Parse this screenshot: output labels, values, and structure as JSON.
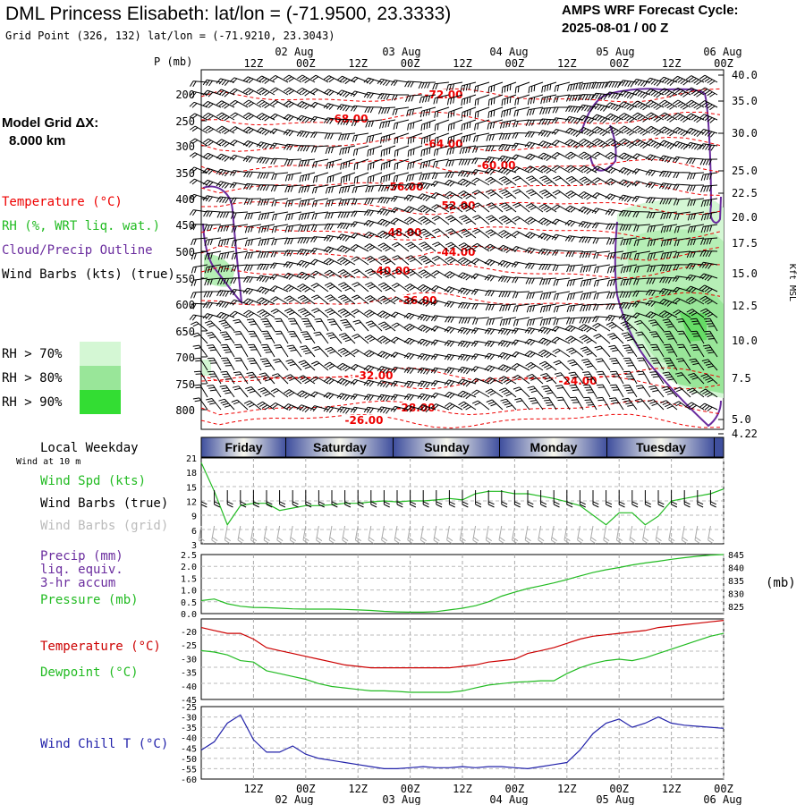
{
  "header": {
    "title": "DML Princess Elisabeth:  lat/lon = (-71.9500, 23.3333)",
    "subtitle": "Grid Point (326, 132) lat/lon = (-71.9210, 23.3043)",
    "cycle_line1": "AMPS WRF Forecast Cycle:",
    "cycle_line2": "2025-08-01 / 00  Z"
  },
  "legend": {
    "model_grid_label": "Model Grid ΔX:",
    "model_grid_value": "8.000 km",
    "temperature": "Temperature (°C)",
    "rh": "RH (%, WRT liq. wat.)",
    "cloud": "Cloud/Precip Outline",
    "wind": "Wind Barbs (kts) (true)",
    "rh70": "RH > 70%",
    "rh80": "RH > 80%",
    "rh90": "RH > 90%",
    "colors": {
      "rh70": "#d4f7d4",
      "rh80": "#99e699",
      "rh90": "#33dd33",
      "temp": "#ee0000",
      "cloud": "#6a2c9e"
    }
  },
  "panels": {
    "p_label": "P (mb)",
    "kft_label": "Kft MSL",
    "local_weekday": "Local Weekday",
    "wind_at": "Wind at 10 m",
    "wind_spd": "Wind Spd (kts)",
    "wind_barbs_true": "Wind Barbs (true)",
    "wind_barbs_grid": "Wind Barbs (grid)",
    "precip_l1": "Precip (mm)",
    "precip_l2": "liq. equiv.",
    "precip_l3": "3-hr accum",
    "pressure": "Pressure (mb)",
    "mb": "(mb)",
    "temperature": "Temperature (°C)",
    "dewpoint": "Dewpoint (°C)",
    "windchill": "Wind Chill T (°C)"
  },
  "time_axis": {
    "labels": [
      "12Z",
      "00Z",
      "12Z",
      "00Z",
      "12Z",
      "00Z",
      "12Z",
      "00Z",
      "12Z",
      "00Z"
    ],
    "dates": [
      "02 Aug",
      "03 Aug",
      "04 Aug",
      "05 Aug",
      "06 Aug"
    ],
    "days": [
      "Friday",
      "Saturday",
      "Sunday",
      "Monday",
      "Tuesday"
    ]
  },
  "chart_data": [
    {
      "type": "line",
      "name": "Vertical cross-section",
      "pressure_ticks": [
        "200",
        "250",
        "300",
        "350",
        "400",
        "450",
        "500",
        "550",
        "600",
        "650",
        "700",
        "750",
        "800"
      ],
      "height_ticks": [
        "40.0",
        "35.0",
        "30.0",
        "25.0",
        "22.5",
        "20.0",
        "17.5",
        "15.0",
        "12.5",
        "10.0",
        "7.5",
        "5.0",
        "4.22"
      ],
      "isotherm_labels": [
        "-72.00",
        "-68.00",
        "-64.00",
        "-60.00",
        "-56.00",
        "-52.00",
        "-48.00",
        "-44.00",
        "-40.00",
        "-36.00",
        "-32.00",
        "-28.00",
        "-26.00",
        "-24.00"
      ]
    },
    {
      "type": "line",
      "name": "Wind speed",
      "x_hours": [
        0,
        3,
        6,
        9,
        12,
        15,
        18,
        21,
        24,
        27,
        30,
        33,
        36,
        39,
        42,
        45,
        48,
        51,
        54,
        57,
        60,
        63,
        66,
        69,
        72,
        75,
        78,
        81,
        84,
        87,
        90,
        93,
        96,
        99,
        102,
        105,
        108,
        111,
        114,
        117,
        120
      ],
      "values": [
        20,
        14,
        7,
        11,
        11.5,
        11.5,
        10,
        10.5,
        11,
        11,
        11.2,
        11.5,
        11.5,
        11.8,
        12,
        11.8,
        12,
        12,
        12.2,
        12.5,
        12.2,
        13.5,
        14,
        14,
        13.5,
        13.5,
        13,
        12.5,
        11.8,
        11,
        9,
        7,
        9.5,
        9.5,
        7,
        8.8,
        12,
        12.5,
        13,
        13.5,
        14.5
      ],
      "yticks": [
        "21",
        "18",
        "15",
        "12",
        "9",
        "6",
        "3"
      ],
      "ylim": [
        3,
        21
      ]
    },
    {
      "type": "line",
      "name": "Precip / Pressure",
      "pressure_values": [
        829.6,
        830.2,
        828.5,
        827.6,
        827.2,
        827.1,
        826.9,
        826.7,
        826.6,
        826.6,
        826.6,
        826.5,
        826.3,
        826.1,
        825.8,
        825.6,
        825.5,
        825.5,
        825.7,
        826.3,
        826.9,
        827.8,
        829.2,
        831.2,
        832.6,
        833.9,
        834.9,
        835.9,
        837.1,
        838.4,
        839.6,
        840.6,
        841.4,
        842.3,
        843.0,
        843.6,
        844.3,
        844.9,
        845.4,
        845.8,
        846.0
      ],
      "yticks_left": [
        "2.5",
        "2.0",
        "1.5",
        "1.0",
        "0.5",
        "0.0"
      ],
      "yticks_right": [
        "845",
        "840",
        "835",
        "830",
        "825"
      ]
    },
    {
      "type": "line",
      "name": "Temperature / Dewpoint",
      "series": [
        {
          "name": "Temperature",
          "values": [
            -20,
            -21,
            -22,
            -22,
            -24,
            -27,
            -28,
            -29,
            -30,
            -31,
            -32,
            -33,
            -33.5,
            -34,
            -34,
            -34,
            -34,
            -34,
            -34,
            -34,
            -33.5,
            -33,
            -32,
            -31.5,
            -31,
            -29,
            -28,
            -27,
            -25.5,
            -24,
            -23,
            -22.5,
            -22,
            -21.5,
            -21,
            -20,
            -19.5,
            -19,
            -18.5,
            -18,
            -17.5
          ]
        },
        {
          "name": "Dewpoint",
          "values": [
            -28,
            -28.5,
            -29.5,
            -31.5,
            -32,
            -35,
            -36,
            -37,
            -38,
            -39.5,
            -40.5,
            -41,
            -41.5,
            -42,
            -42,
            -42.2,
            -42.5,
            -42.5,
            -42.5,
            -42.5,
            -42,
            -41,
            -40,
            -39.5,
            -39,
            -38.8,
            -38.5,
            -38.5,
            -36,
            -34,
            -32.5,
            -31.5,
            -31,
            -31.5,
            -30.5,
            -29,
            -27.5,
            -26,
            -24.5,
            -23,
            -22
          ]
        }
      ],
      "yticks": [
        "-20",
        "-25",
        "-30",
        "-35",
        "-40",
        "-45"
      ],
      "ylim": [
        -45,
        -17
      ]
    },
    {
      "type": "line",
      "name": "Wind chill",
      "values": [
        -46,
        -42,
        -33,
        -29,
        -41,
        -47,
        -47,
        -44,
        -48,
        -50,
        -51,
        -52,
        -53,
        -54,
        -55,
        -55,
        -54.5,
        -54,
        -54.5,
        -54.5,
        -54,
        -54.5,
        -54,
        -54,
        -54.5,
        -55,
        -54,
        -53,
        -52,
        -46,
        -38,
        -33,
        -31,
        -35,
        -33,
        -30,
        -33,
        -34,
        -34.5,
        -35,
        -35.5
      ],
      "yticks": [
        "-25",
        "-30",
        "-35",
        "-40",
        "-45",
        "-50",
        "-55",
        "-60"
      ],
      "ylim": [
        -60,
        -25
      ]
    }
  ]
}
